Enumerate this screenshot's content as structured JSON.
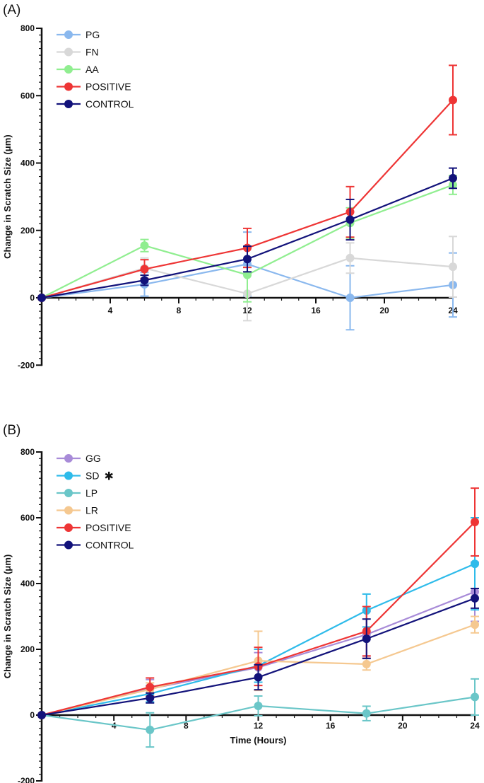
{
  "chart_data": [
    {
      "id": "A",
      "type": "line",
      "panel_label": "(A)",
      "ylabel": "Change in Scratch Size (μm)",
      "xlabel": "",
      "xlim": [
        0,
        24
      ],
      "ylim": [
        -200,
        800
      ],
      "x_ticks": [
        "4",
        "8",
        "12",
        "16",
        "20",
        "24"
      ],
      "y_ticks": [
        "800",
        "600",
        "400",
        "200",
        "0",
        "-200"
      ],
      "legend_position": "top-left",
      "series": [
        {
          "name": "PG",
          "color": "#8ab8ee",
          "x": [
            0,
            6,
            12,
            18,
            24
          ],
          "values": [
            0,
            40,
            100,
            0,
            38
          ],
          "errors": [
            0,
            35,
            95,
            95,
            95
          ]
        },
        {
          "name": "FN",
          "color": "#d8d8d8",
          "x": [
            0,
            6,
            12,
            18,
            24
          ],
          "values": [
            0,
            88,
            12,
            118,
            92
          ],
          "errors": [
            0,
            30,
            80,
            45,
            90
          ]
        },
        {
          "name": "AA",
          "color": "#90ee90",
          "x": [
            0,
            6,
            12,
            18,
            24
          ],
          "values": [
            0,
            155,
            68,
            222,
            335
          ],
          "errors": [
            0,
            18,
            80,
            45,
            28
          ]
        },
        {
          "name": "POSITIVE",
          "color": "#ee3535",
          "x": [
            0,
            6,
            12,
            18,
            24
          ],
          "values": [
            0,
            85,
            148,
            255,
            587
          ],
          "errors": [
            0,
            28,
            58,
            75,
            103
          ]
        },
        {
          "name": "CONTROL",
          "color": "#12127a",
          "x": [
            0,
            6,
            12,
            18,
            24
          ],
          "values": [
            0,
            52,
            115,
            232,
            355
          ],
          "errors": [
            0,
            15,
            38,
            60,
            30
          ]
        }
      ]
    },
    {
      "id": "B",
      "type": "line",
      "panel_label": "(B)",
      "ylabel": "Change in Scratch Size (μm)",
      "xlabel": "Time (Hours)",
      "xlim": [
        0,
        24
      ],
      "ylim": [
        -200,
        800
      ],
      "x_ticks": [
        "4",
        "8",
        "12",
        "16",
        "20",
        "24"
      ],
      "y_ticks": [
        "800",
        "600",
        "400",
        "200",
        "0",
        "-200"
      ],
      "legend_position": "top-left",
      "significance_mark": {
        "series": "SD",
        "symbol": "✱"
      },
      "series": [
        {
          "name": "GG",
          "color": "#a88bd8",
          "x": [
            0,
            6,
            12,
            18,
            24
          ],
          "values": [
            0,
            80,
            145,
            245,
            375
          ],
          "errors": [
            0,
            28,
            45,
            70,
            90
          ]
        },
        {
          "name": "SD",
          "color": "#2ebbea",
          "x": [
            0,
            6,
            12,
            18,
            24
          ],
          "values": [
            0,
            65,
            150,
            318,
            460
          ],
          "errors": [
            0,
            25,
            50,
            50,
            140
          ]
        },
        {
          "name": "LP",
          "color": "#6ac6c8",
          "x": [
            0,
            6,
            12,
            18,
            24
          ],
          "values": [
            0,
            -45,
            28,
            5,
            55
          ],
          "errors": [
            0,
            52,
            30,
            22,
            55
          ]
        },
        {
          "name": "LR",
          "color": "#f5c890",
          "x": [
            0,
            6,
            12,
            18,
            24
          ],
          "values": [
            0,
            78,
            165,
            155,
            275
          ],
          "errors": [
            0,
            20,
            90,
            18,
            25
          ]
        },
        {
          "name": "POSITIVE",
          "color": "#ee3535",
          "x": [
            0,
            6,
            12,
            18,
            24
          ],
          "values": [
            0,
            85,
            148,
            255,
            587
          ],
          "errors": [
            0,
            28,
            58,
            75,
            103
          ]
        },
        {
          "name": "CONTROL",
          "color": "#12127a",
          "x": [
            0,
            6,
            12,
            18,
            24
          ],
          "values": [
            0,
            52,
            115,
            232,
            355
          ],
          "errors": [
            0,
            15,
            38,
            60,
            30
          ]
        }
      ]
    }
  ]
}
